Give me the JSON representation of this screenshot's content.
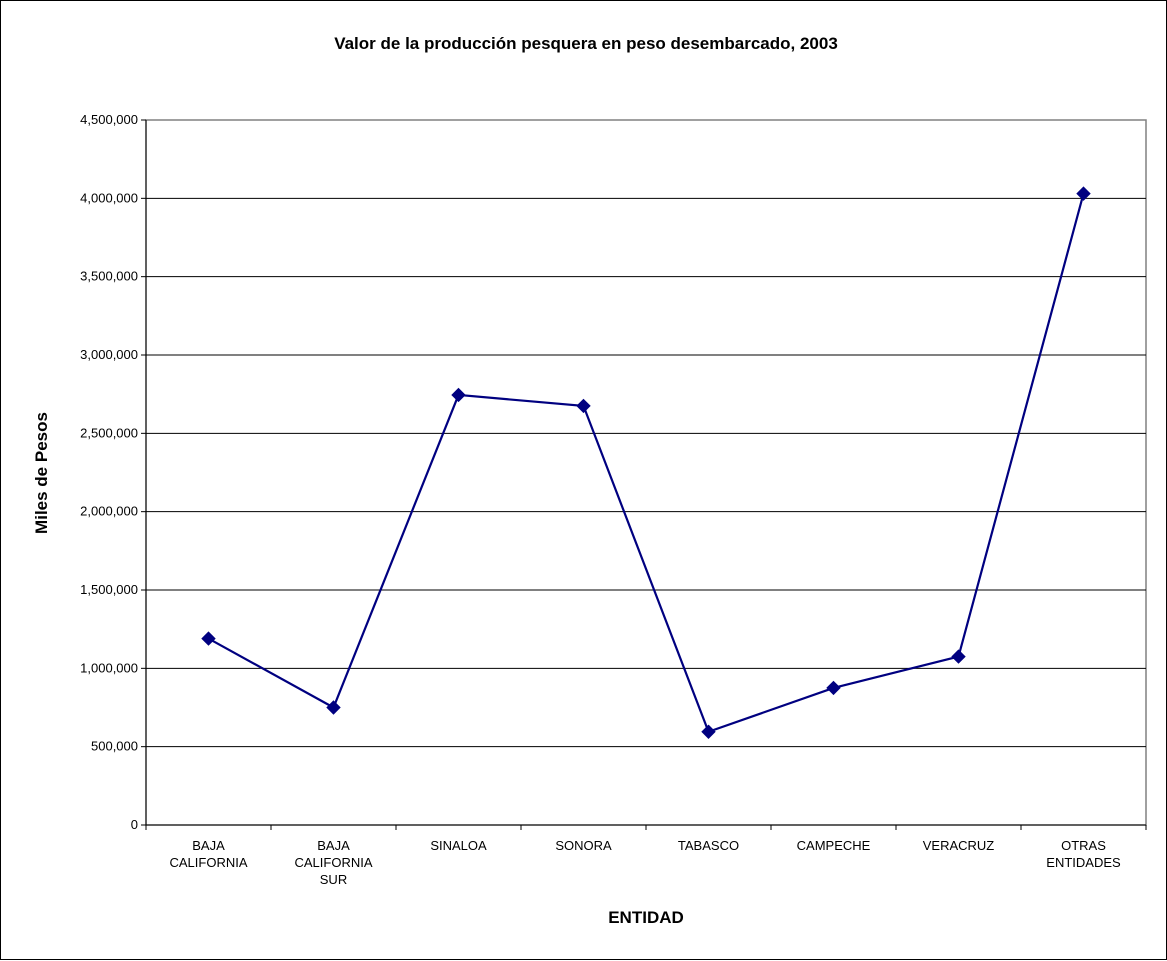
{
  "chart_data": {
    "type": "line",
    "title": "Valor de la producción pesquera en peso desembarcado, 2003",
    "xlabel": "ENTIDAD",
    "ylabel": "Miles de Pesos",
    "categories": [
      [
        "BAJA",
        "CALIFORNIA"
      ],
      [
        "BAJA",
        "CALIFORNIA",
        "SUR"
      ],
      [
        "SINALOA"
      ],
      [
        "SONORA"
      ],
      [
        "TABASCO"
      ],
      [
        "CAMPECHE"
      ],
      [
        "VERACRUZ"
      ],
      [
        "OTRAS",
        "ENTIDADES"
      ]
    ],
    "series": [
      {
        "values": [
          1190000,
          750000,
          2745000,
          2675000,
          595000,
          875000,
          1075000,
          4030000
        ],
        "color": "#000080",
        "marker": "diamond"
      }
    ],
    "ylim": [
      0,
      4500000
    ],
    "yticks": [
      0,
      500000,
      1000000,
      1500000,
      2000000,
      2500000,
      3000000,
      3500000,
      4000000,
      4500000
    ],
    "ytick_labels": [
      "0",
      "500,000",
      "1,000,000",
      "1,500,000",
      "2,000,000",
      "2,500,000",
      "3,000,000",
      "3,500,000",
      "4,000,000",
      "4,500,000"
    ],
    "grid": true,
    "legend": "none",
    "colors": {
      "plot_border": "#808080",
      "gridline": "#000000",
      "line": "#000080"
    }
  }
}
